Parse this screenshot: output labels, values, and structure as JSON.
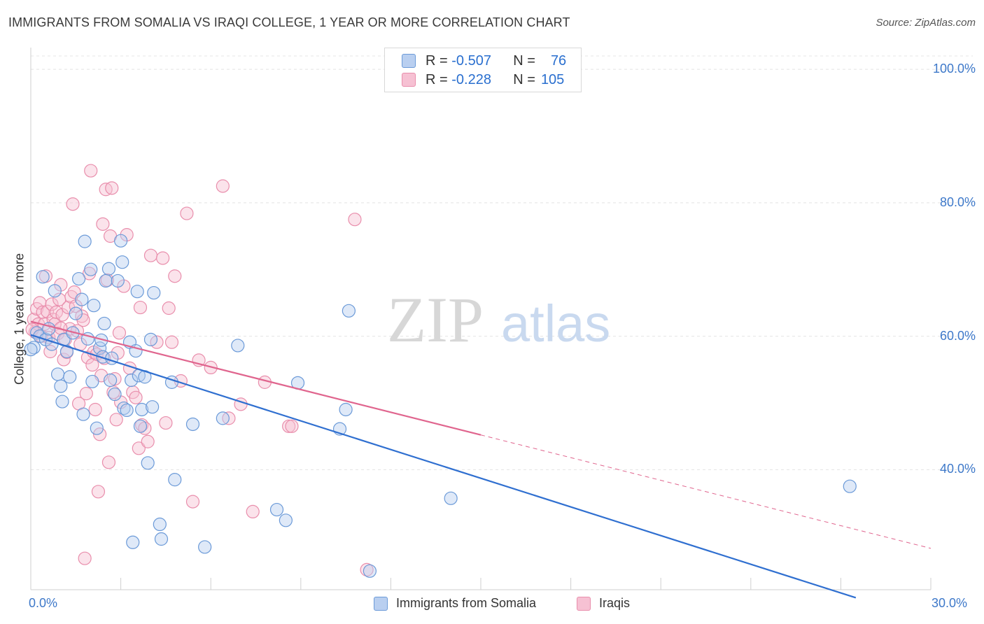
{
  "title": "IMMIGRANTS FROM SOMALIA VS IRAQI COLLEGE, 1 YEAR OR MORE CORRELATION CHART",
  "source": "Source: ZipAtlas.com",
  "watermark": {
    "zip": "ZIP",
    "atlas": "atlas"
  },
  "legend": {
    "r_label": "R =",
    "n_label": "N =",
    "somalia": {
      "r": "-0.507",
      "n": "76"
    },
    "iraqi": {
      "r": "-0.228",
      "n": "105"
    }
  },
  "colors": {
    "somalia_fill": "#b9cff0",
    "somalia_stroke": "#6b9ad8",
    "somalia_line": "#2f6fd0",
    "iraqi_fill": "#f6c1d3",
    "iraqi_stroke": "#e98eac",
    "iraqi_line": "#e0658e",
    "tick_text": "#3d78c9",
    "grid": "#e4e4e4"
  },
  "chart_data": {
    "type": "scatter",
    "title": "IMMIGRANTS FROM SOMALIA VS IRAQI COLLEGE, 1 YEAR OR MORE CORRELATION CHART",
    "xlabel": "",
    "ylabel": "College, 1 year or more",
    "xlim": [
      0,
      30
    ],
    "ylim": [
      22,
      102
    ],
    "x_tick_labels": [
      "0.0%",
      "30.0%"
    ],
    "y_ticks": [
      40,
      60,
      80,
      100
    ],
    "y_tick_labels": [
      "40.0%",
      "60.0%",
      "80.0%",
      "100.0%"
    ],
    "series": [
      {
        "name": "Immigrants from Somalia",
        "points": [
          [
            0.1,
            58.3
          ],
          [
            0.2,
            60.5
          ],
          [
            0.3,
            60.0
          ],
          [
            0.4,
            68.9
          ],
          [
            0.5,
            59.5
          ],
          [
            0.6,
            61.1
          ],
          [
            0.7,
            58.8
          ],
          [
            0.8,
            66.8
          ],
          [
            0.9,
            54.3
          ],
          [
            1.0,
            52.5
          ],
          [
            1.05,
            50.2
          ],
          [
            1.1,
            59.5
          ],
          [
            1.2,
            57.7
          ],
          [
            1.3,
            53.9
          ],
          [
            1.4,
            60.5
          ],
          [
            1.5,
            63.4
          ],
          [
            1.6,
            68.6
          ],
          [
            1.7,
            65.5
          ],
          [
            1.75,
            48.3
          ],
          [
            1.8,
            74.2
          ],
          [
            1.9,
            59.6
          ],
          [
            2.0,
            70.0
          ],
          [
            2.05,
            53.2
          ],
          [
            2.1,
            64.6
          ],
          [
            2.2,
            46.2
          ],
          [
            2.3,
            58.2
          ],
          [
            2.35,
            59.4
          ],
          [
            2.4,
            56.9
          ],
          [
            2.45,
            61.9
          ],
          [
            2.5,
            68.3
          ],
          [
            2.6,
            70.1
          ],
          [
            2.65,
            53.4
          ],
          [
            2.7,
            56.7
          ],
          [
            2.8,
            51.3
          ],
          [
            2.9,
            68.3
          ],
          [
            3.0,
            74.3
          ],
          [
            3.05,
            71.1
          ],
          [
            3.1,
            49.2
          ],
          [
            3.2,
            48.9
          ],
          [
            3.3,
            59.1
          ],
          [
            3.35,
            53.4
          ],
          [
            3.4,
            29.1
          ],
          [
            3.5,
            57.8
          ],
          [
            3.55,
            66.7
          ],
          [
            3.6,
            54.1
          ],
          [
            3.65,
            46.5
          ],
          [
            3.7,
            49.0
          ],
          [
            3.8,
            53.9
          ],
          [
            3.9,
            41.0
          ],
          [
            4.0,
            59.5
          ],
          [
            4.05,
            49.4
          ],
          [
            4.1,
            66.5
          ],
          [
            4.3,
            31.8
          ],
          [
            4.35,
            29.6
          ],
          [
            4.7,
            53.1
          ],
          [
            4.8,
            38.5
          ],
          [
            5.4,
            46.8
          ],
          [
            5.8,
            28.4
          ],
          [
            6.4,
            47.7
          ],
          [
            6.9,
            58.6
          ],
          [
            8.2,
            34.0
          ],
          [
            8.5,
            32.4
          ],
          [
            8.9,
            53.0
          ],
          [
            10.3,
            46.1
          ],
          [
            10.5,
            49.0
          ],
          [
            10.6,
            63.8
          ],
          [
            11.3,
            24.8
          ],
          [
            14.0,
            35.7
          ],
          [
            27.3,
            37.5
          ],
          [
            0.0,
            58.0
          ]
        ]
      },
      {
        "name": "Iraqis",
        "points": [
          [
            0.1,
            62.5
          ],
          [
            0.15,
            60.6
          ],
          [
            0.2,
            64.1
          ],
          [
            0.25,
            61.8
          ],
          [
            0.3,
            65.0
          ],
          [
            0.35,
            60.0
          ],
          [
            0.4,
            63.6
          ],
          [
            0.45,
            61.8
          ],
          [
            0.5,
            69.0
          ],
          [
            0.55,
            63.7
          ],
          [
            0.6,
            59.8
          ],
          [
            0.65,
            57.7
          ],
          [
            0.7,
            64.8
          ],
          [
            0.75,
            62.5
          ],
          [
            0.8,
            61.8
          ],
          [
            0.85,
            63.6
          ],
          [
            0.9,
            60.4
          ],
          [
            0.95,
            65.5
          ],
          [
            1.0,
            67.7
          ],
          [
            1.05,
            63.2
          ],
          [
            1.1,
            56.5
          ],
          [
            1.15,
            59.5
          ],
          [
            1.2,
            57.6
          ],
          [
            1.25,
            64.3
          ],
          [
            1.3,
            61.1
          ],
          [
            1.35,
            65.9
          ],
          [
            1.4,
            79.8
          ],
          [
            1.45,
            66.6
          ],
          [
            1.5,
            64.5
          ],
          [
            1.55,
            60.8
          ],
          [
            1.6,
            49.9
          ],
          [
            1.65,
            58.8
          ],
          [
            1.7,
            63.0
          ],
          [
            1.75,
            62.4
          ],
          [
            1.8,
            26.7
          ],
          [
            1.85,
            51.4
          ],
          [
            1.9,
            56.8
          ],
          [
            1.95,
            69.4
          ],
          [
            2.0,
            84.8
          ],
          [
            2.05,
            55.7
          ],
          [
            2.1,
            57.6
          ],
          [
            2.15,
            49.0
          ],
          [
            2.2,
            57.3
          ],
          [
            2.25,
            36.7
          ],
          [
            2.3,
            45.3
          ],
          [
            2.35,
            54.1
          ],
          [
            2.4,
            76.8
          ],
          [
            2.45,
            56.7
          ],
          [
            2.5,
            82.0
          ],
          [
            2.55,
            68.4
          ],
          [
            2.6,
            41.1
          ],
          [
            2.65,
            75.0
          ],
          [
            2.7,
            82.2
          ],
          [
            2.75,
            51.6
          ],
          [
            2.8,
            53.6
          ],
          [
            2.85,
            47.5
          ],
          [
            2.9,
            57.5
          ],
          [
            3.0,
            50.1
          ],
          [
            3.1,
            67.5
          ],
          [
            3.2,
            75.2
          ],
          [
            3.3,
            55.2
          ],
          [
            3.4,
            51.6
          ],
          [
            3.5,
            50.8
          ],
          [
            3.6,
            43.2
          ],
          [
            3.65,
            64.3
          ],
          [
            3.7,
            46.7
          ],
          [
            3.8,
            46.2
          ],
          [
            3.9,
            44.2
          ],
          [
            4.0,
            72.1
          ],
          [
            4.2,
            59.1
          ],
          [
            4.4,
            71.7
          ],
          [
            4.5,
            47.0
          ],
          [
            4.6,
            64.2
          ],
          [
            4.7,
            59.1
          ],
          [
            4.8,
            69.0
          ],
          [
            5.0,
            53.3
          ],
          [
            5.2,
            78.4
          ],
          [
            5.4,
            35.2
          ],
          [
            5.6,
            56.4
          ],
          [
            6.0,
            55.3
          ],
          [
            6.4,
            82.5
          ],
          [
            6.6,
            47.7
          ],
          [
            7.0,
            49.8
          ],
          [
            7.4,
            33.7
          ],
          [
            7.8,
            53.1
          ],
          [
            8.6,
            46.5
          ],
          [
            8.7,
            46.5
          ],
          [
            10.8,
            77.5
          ],
          [
            11.2,
            25.0
          ],
          [
            2.95,
            60.5
          ],
          [
            0.05,
            61.0
          ],
          [
            1.0,
            61.2
          ]
        ]
      }
    ],
    "trend_lines": [
      {
        "series": "Immigrants from Somalia",
        "x": [
          0,
          27.5
        ],
        "y": [
          60.2,
          20.8
        ]
      },
      {
        "series": "Iraqis",
        "x": [
          0,
          15
        ],
        "y": [
          62.2,
          45.2
        ],
        "dashed_extension_to_x": 30
      }
    ]
  },
  "bottom_legend": {
    "somalia": "Immigrants from Somalia",
    "iraqi": "Iraqis"
  }
}
